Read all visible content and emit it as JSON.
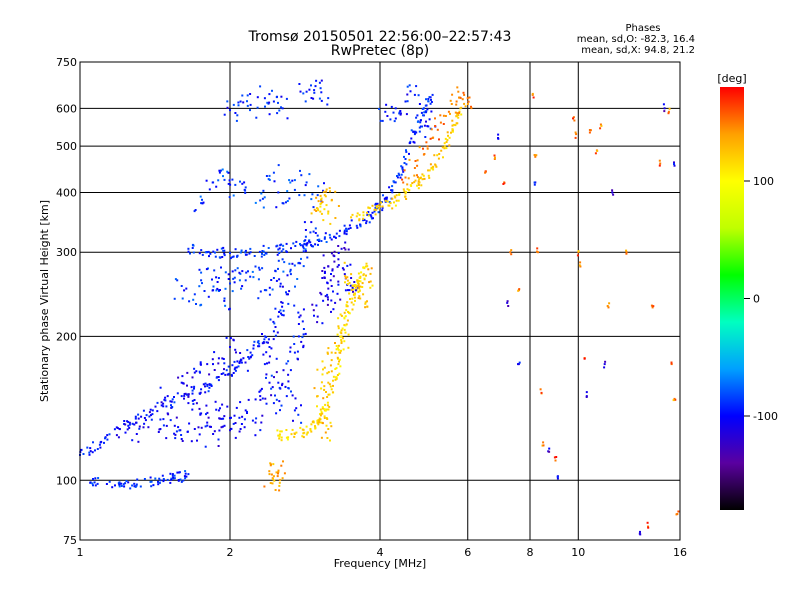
{
  "chart_data": {
    "type": "scatter",
    "title": "Tromsø 20150501 22:56:00–22:57:43",
    "subtitle": "RwPretec (8p)",
    "xlabel": "Frequency [MHz]",
    "ylabel": "Stationary phase Virtual Height [km]",
    "x_scale": "log",
    "y_scale": "log",
    "xlim": [
      1,
      16
    ],
    "ylim": [
      75,
      750
    ],
    "x_ticks": [
      1,
      2,
      4,
      6,
      8,
      10,
      16
    ],
    "y_ticks": [
      75,
      100,
      200,
      300,
      400,
      500,
      600,
      750
    ],
    "grid": true,
    "stats": {
      "heading": "Phases",
      "line_o": "mean, sd,O: -82.3, 16.4",
      "line_x": "mean, sd,X: 94.8, 21.2"
    },
    "colorbar": {
      "label": "[deg]",
      "range": [
        -180,
        180
      ],
      "ticks": [
        -100,
        0,
        100
      ],
      "colors": [
        "#000000",
        "#5a00a0",
        "#0000ff",
        "#00a0ff",
        "#00ffc0",
        "#00ff00",
        "#c0ff00",
        "#ffff00",
        "#ffa000",
        "#ff0000"
      ]
    },
    "series": [
      {
        "kind": "trace",
        "phase": -95,
        "points": [
          [
            1.0,
            113
          ],
          [
            1.1,
            120
          ],
          [
            1.25,
            130
          ],
          [
            1.4,
            140
          ],
          [
            1.6,
            150
          ],
          [
            1.75,
            155
          ],
          [
            1.9,
            162
          ],
          [
            2.05,
            172
          ],
          [
            2.2,
            185
          ],
          [
            2.35,
            200
          ]
        ]
      },
      {
        "kind": "trace",
        "phase": -90,
        "points": [
          [
            1.05,
            99
          ],
          [
            1.2,
            99
          ],
          [
            1.3,
            98
          ],
          [
            1.45,
            100
          ],
          [
            1.55,
            101
          ],
          [
            1.65,
            103
          ]
        ]
      },
      {
        "kind": "trace",
        "phase": -90,
        "points": [
          [
            1.65,
            305
          ],
          [
            1.8,
            300
          ],
          [
            2.0,
            299
          ],
          [
            2.2,
            300
          ],
          [
            2.5,
            304
          ],
          [
            2.8,
            310
          ],
          [
            3.1,
            320
          ],
          [
            3.4,
            333
          ],
          [
            3.7,
            350
          ],
          [
            3.9,
            365
          ],
          [
            4.1,
            385
          ],
          [
            4.3,
            420
          ],
          [
            4.5,
            470
          ],
          [
            4.7,
            530
          ],
          [
            4.9,
            600
          ],
          [
            5.1,
            640
          ]
        ]
      },
      {
        "kind": "trace",
        "phase": 120,
        "points": [
          [
            3.5,
            355
          ],
          [
            3.9,
            368
          ],
          [
            4.2,
            380
          ],
          [
            4.5,
            398
          ],
          [
            4.8,
            420
          ],
          [
            5.1,
            450
          ],
          [
            5.4,
            500
          ],
          [
            5.6,
            540
          ],
          [
            5.8,
            600
          ]
        ]
      },
      {
        "kind": "trace",
        "phase": 115,
        "points": [
          [
            2.5,
            124
          ],
          [
            2.7,
            125
          ],
          [
            2.9,
            128
          ],
          [
            3.0,
            132
          ],
          [
            3.1,
            140
          ],
          [
            3.2,
            155
          ],
          [
            3.3,
            175
          ],
          [
            3.35,
            200
          ],
          [
            3.45,
            225
          ],
          [
            3.55,
            245
          ],
          [
            3.65,
            265
          ],
          [
            3.75,
            280
          ]
        ]
      },
      {
        "kind": "cloud",
        "phase": -105,
        "points": [
          [
            1.2,
            128
          ],
          [
            1.3,
            125
          ],
          [
            1.35,
            135
          ],
          [
            1.45,
            128
          ],
          [
            1.5,
            138
          ],
          [
            1.55,
            130
          ],
          [
            1.6,
            122
          ],
          [
            1.7,
            128
          ],
          [
            1.75,
            138
          ],
          [
            1.8,
            132
          ],
          [
            1.85,
            125
          ],
          [
            1.9,
            140
          ],
          [
            1.95,
            130
          ],
          [
            2.0,
            135
          ],
          [
            2.1,
            128
          ],
          [
            2.15,
            140
          ],
          [
            2.25,
            132
          ],
          [
            1.6,
            160
          ],
          [
            1.7,
            168
          ],
          [
            1.8,
            175
          ],
          [
            1.9,
            180
          ],
          [
            2.0,
            190
          ],
          [
            2.1,
            178
          ],
          [
            1.5,
            150
          ],
          [
            1.65,
            145
          ],
          [
            2.3,
            150
          ],
          [
            2.4,
            160
          ]
        ]
      },
      {
        "kind": "cloud",
        "phase": -88,
        "points": [
          [
            1.6,
            255
          ],
          [
            1.7,
            245
          ],
          [
            1.75,
            262
          ],
          [
            1.85,
            250
          ],
          [
            1.9,
            265
          ],
          [
            1.95,
            240
          ],
          [
            2.0,
            258
          ],
          [
            2.05,
            275
          ],
          [
            2.15,
            262
          ],
          [
            2.25,
            280
          ],
          [
            2.35,
            250
          ],
          [
            2.45,
            265
          ],
          [
            2.55,
            290
          ],
          [
            2.65,
            270
          ],
          [
            2.75,
            285
          ],
          [
            2.85,
            310
          ],
          [
            2.9,
            330
          ],
          [
            3.0,
            325
          ]
        ]
      },
      {
        "kind": "cloud",
        "phase": -95,
        "points": [
          [
            2.35,
            175
          ],
          [
            2.4,
            190
          ],
          [
            2.45,
            205
          ],
          [
            2.5,
            220
          ],
          [
            2.55,
            235
          ],
          [
            2.6,
            245
          ],
          [
            2.65,
            170
          ],
          [
            2.7,
            185
          ],
          [
            2.75,
            200
          ],
          [
            2.8,
            215
          ],
          [
            2.5,
            160
          ],
          [
            2.6,
            150
          ],
          [
            2.7,
            140
          ],
          [
            2.45,
            145
          ]
        ]
      },
      {
        "kind": "cloud",
        "phase": -110,
        "points": [
          [
            3.0,
            220
          ],
          [
            3.05,
            245
          ],
          [
            3.1,
            265
          ],
          [
            3.15,
            280
          ],
          [
            3.2,
            255
          ],
          [
            3.25,
            235
          ],
          [
            3.3,
            290
          ],
          [
            3.35,
            305
          ],
          [
            3.4,
            270
          ],
          [
            3.45,
            250
          ],
          [
            3.5,
            265
          ]
        ]
      },
      {
        "kind": "cloud",
        "phase": -85,
        "points": [
          [
            1.75,
            380
          ],
          [
            1.85,
            420
          ],
          [
            1.95,
            425
          ],
          [
            2.05,
            415
          ],
          [
            2.15,
            410
          ],
          [
            2.3,
            385
          ],
          [
            2.45,
            440
          ],
          [
            2.55,
            380
          ],
          [
            2.7,
            405
          ],
          [
            2.85,
            420
          ],
          [
            3.0,
            395
          ]
        ]
      },
      {
        "kind": "cloud",
        "phase": -95,
        "points": [
          [
            2.0,
            595
          ],
          [
            2.1,
            620
          ],
          [
            2.2,
            610
          ],
          [
            2.35,
            630
          ],
          [
            2.45,
            620
          ],
          [
            2.55,
            600
          ],
          [
            2.85,
            650
          ],
          [
            2.95,
            655
          ],
          [
            3.05,
            648
          ],
          [
            4.1,
            590
          ],
          [
            4.3,
            600
          ],
          [
            4.5,
            620
          ],
          [
            4.7,
            640
          ],
          [
            4.9,
            580
          ],
          [
            5.0,
            550
          ]
        ]
      },
      {
        "kind": "cloud",
        "phase": 125,
        "points": [
          [
            3.0,
            370
          ],
          [
            3.05,
            380
          ],
          [
            3.1,
            395
          ],
          [
            3.15,
            365
          ],
          [
            3.2,
            385
          ],
          [
            3.5,
            270
          ],
          [
            3.55,
            255
          ],
          [
            3.6,
            262
          ],
          [
            3.65,
            240
          ],
          [
            3.7,
            245
          ],
          [
            3.75,
            268
          ],
          [
            3.3,
            210
          ],
          [
            3.35,
            195
          ],
          [
            3.2,
            185
          ],
          [
            3.1,
            172
          ],
          [
            3.15,
            160
          ],
          [
            3.0,
            150
          ],
          [
            3.1,
            135
          ],
          [
            3.15,
            128
          ]
        ]
      },
      {
        "kind": "cloud",
        "phase": 150,
        "points": [
          [
            4.5,
            430
          ],
          [
            4.7,
            450
          ],
          [
            4.9,
            480
          ],
          [
            5.1,
            520
          ],
          [
            5.3,
            560
          ],
          [
            5.5,
            590
          ],
          [
            5.7,
            620
          ],
          [
            5.9,
            640
          ],
          [
            6.0,
            630
          ]
        ]
      },
      {
        "kind": "cloud",
        "phase": 135,
        "points": [
          [
            2.4,
            103
          ],
          [
            2.45,
            102
          ],
          [
            2.5,
            104
          ],
          [
            2.55,
            101
          ]
        ]
      },
      {
        "kind": "sparse",
        "phase": 150,
        "points": [
          [
            6.5,
            440
          ],
          [
            6.8,
            470
          ],
          [
            7.1,
            420
          ],
          [
            7.3,
            300
          ],
          [
            7.6,
            250
          ],
          [
            8.1,
            640
          ],
          [
            8.2,
            475
          ],
          [
            8.3,
            300
          ],
          [
            8.4,
            155
          ],
          [
            8.5,
            120
          ],
          [
            9.0,
            110
          ],
          [
            9.8,
            575
          ],
          [
            9.9,
            530
          ],
          [
            10.0,
            300
          ],
          [
            10.1,
            280
          ],
          [
            10.3,
            180
          ],
          [
            10.6,
            540
          ],
          [
            10.9,
            490
          ],
          [
            11.1,
            555
          ],
          [
            11.5,
            230
          ],
          [
            12.5,
            300
          ],
          [
            13.8,
            80
          ],
          [
            14.1,
            230
          ],
          [
            14.6,
            460
          ],
          [
            15.2,
            590
          ],
          [
            15.4,
            175
          ],
          [
            15.6,
            148
          ],
          [
            15.8,
            85
          ]
        ]
      },
      {
        "kind": "sparse",
        "phase": -110,
        "points": [
          [
            6.9,
            520
          ],
          [
            7.2,
            235
          ],
          [
            7.6,
            175
          ],
          [
            8.2,
            420
          ],
          [
            8.7,
            115
          ],
          [
            9.1,
            102
          ],
          [
            10.4,
            150
          ],
          [
            11.3,
            175
          ],
          [
            11.7,
            400
          ],
          [
            13.3,
            78
          ],
          [
            14.9,
            600
          ],
          [
            15.6,
            455
          ]
        ]
      }
    ]
  }
}
